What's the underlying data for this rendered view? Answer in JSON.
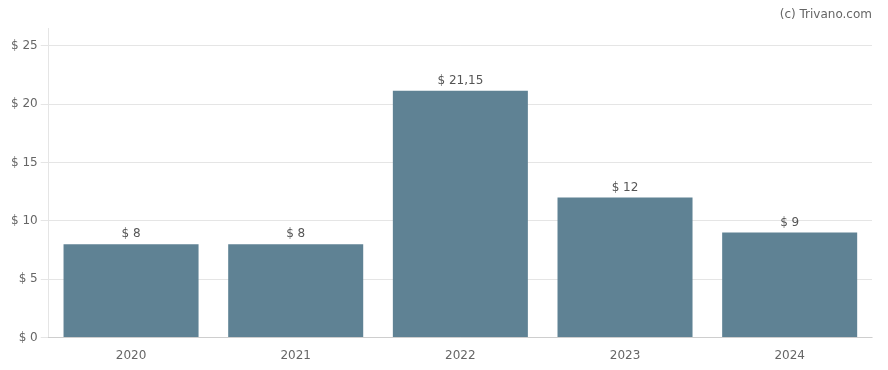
{
  "chart_data": {
    "type": "bar",
    "categories": [
      "2020",
      "2021",
      "2022",
      "2023",
      "2024"
    ],
    "values": [
      8,
      8,
      21.15,
      12,
      9
    ],
    "value_labels": [
      "$ 8",
      "$ 8",
      "$ 21,15",
      "$ 12",
      "$ 9"
    ],
    "data_labels": true,
    "color": "#5f8294",
    "ylim": [
      0,
      26.5
    ],
    "yticks": [
      {
        "value": 0,
        "label": "$ 0"
      },
      {
        "value": 5,
        "label": "$ 5"
      },
      {
        "value": 10,
        "label": "$ 10"
      },
      {
        "value": 15,
        "label": "$ 15"
      },
      {
        "value": 20,
        "label": "$ 20"
      },
      {
        "value": 25,
        "label": "$ 25"
      }
    ],
    "grid": true,
    "annotations": [
      {
        "text": "(c) Trivano.com"
      }
    ]
  }
}
